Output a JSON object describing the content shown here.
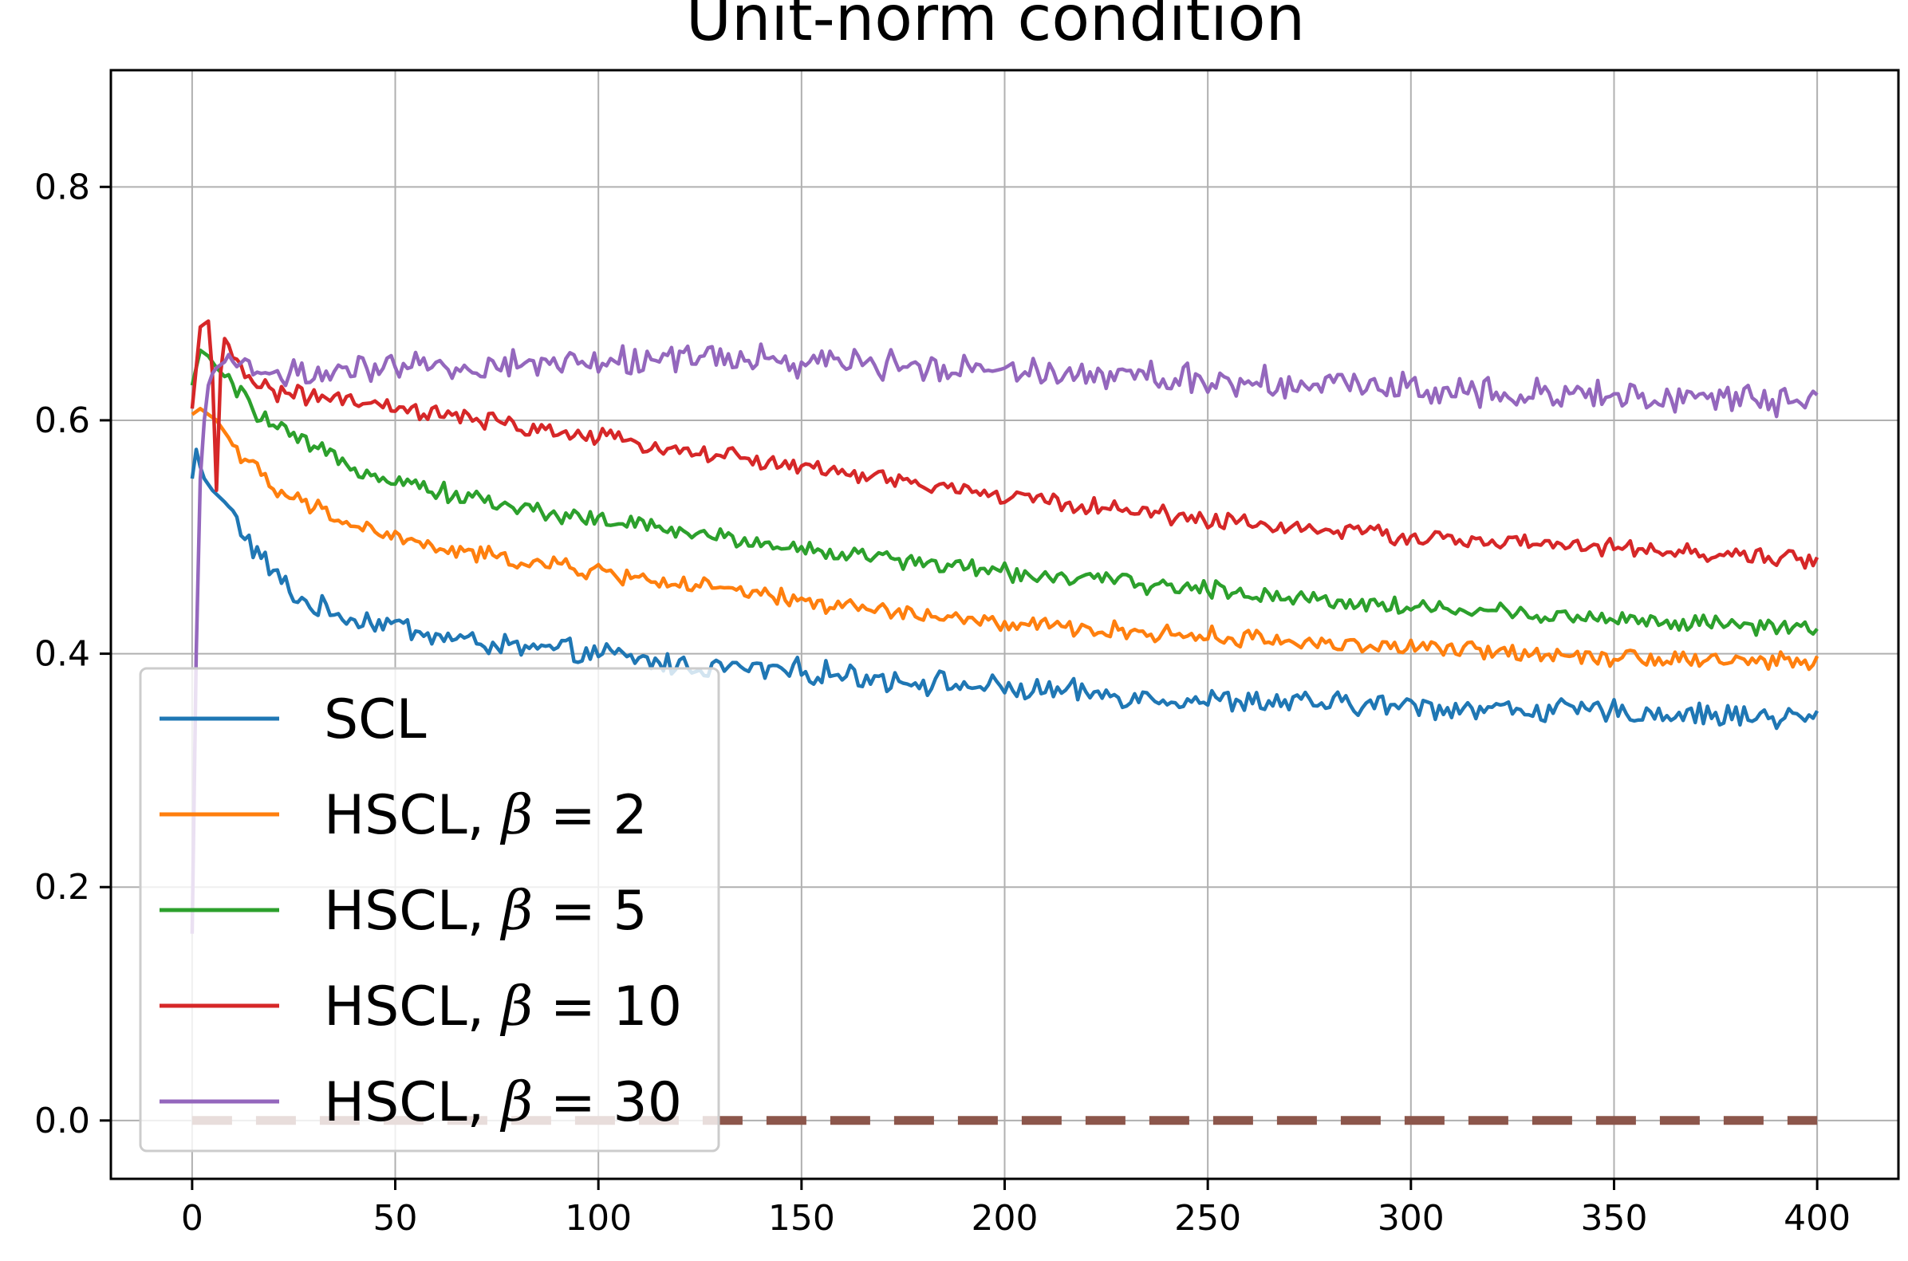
{
  "chart_data": {
    "type": "line",
    "title": "Unit-norm condition",
    "xlabel": "",
    "ylabel": "",
    "xlim": [
      -20,
      420
    ],
    "ylim": [
      -0.05,
      0.9
    ],
    "xticks": [
      0,
      50,
      100,
      150,
      200,
      250,
      300,
      350,
      400
    ],
    "yticks": [
      0.0,
      0.2,
      0.4,
      0.6,
      0.8
    ],
    "xtick_labels": [
      "0",
      "50",
      "100",
      "150",
      "200",
      "250",
      "300",
      "350",
      "400"
    ],
    "ytick_labels": [
      "0.0",
      "0.2",
      "0.4",
      "0.6",
      "0.8"
    ],
    "grid": true,
    "legend_position": "lower-left",
    "series": [
      {
        "name": "SCL",
        "color": "#1f77b4",
        "x": [
          0,
          1,
          2,
          3,
          5,
          8,
          10,
          15,
          20,
          25,
          30,
          40,
          50,
          60,
          70,
          80,
          100,
          120,
          150,
          200,
          250,
          300,
          350,
          400
        ],
        "y": [
          0.55,
          0.575,
          0.56,
          0.55,
          0.54,
          0.53,
          0.52,
          0.49,
          0.47,
          0.45,
          0.44,
          0.43,
          0.425,
          0.415,
          0.41,
          0.405,
          0.4,
          0.39,
          0.385,
          0.37,
          0.36,
          0.355,
          0.35,
          0.345
        ],
        "noise": 0.008
      },
      {
        "name": "HSCL, β = 2",
        "color": "#ff7f0e",
        "x": [
          0,
          2,
          4,
          6,
          10,
          15,
          20,
          30,
          40,
          50,
          60,
          80,
          100,
          120,
          150,
          200,
          250,
          300,
          350,
          400
        ],
        "y": [
          0.605,
          0.61,
          0.605,
          0.6,
          0.58,
          0.56,
          0.54,
          0.525,
          0.51,
          0.5,
          0.49,
          0.48,
          0.47,
          0.46,
          0.445,
          0.425,
          0.415,
          0.405,
          0.398,
          0.392
        ],
        "noise": 0.006
      },
      {
        "name": "HSCL, β = 5",
        "color": "#2ca02c",
        "x": [
          0,
          2,
          4,
          6,
          10,
          15,
          20,
          30,
          40,
          50,
          60,
          80,
          100,
          120,
          150,
          200,
          250,
          300,
          350,
          400
        ],
        "y": [
          0.63,
          0.66,
          0.655,
          0.645,
          0.63,
          0.61,
          0.595,
          0.575,
          0.56,
          0.55,
          0.54,
          0.525,
          0.515,
          0.505,
          0.49,
          0.47,
          0.455,
          0.44,
          0.43,
          0.42
        ],
        "noise": 0.006
      },
      {
        "name": "HSCL, β = 10",
        "color": "#d62728",
        "x": [
          0,
          2,
          4,
          5,
          6,
          7,
          8,
          10,
          15,
          20,
          30,
          40,
          50,
          60,
          80,
          100,
          120,
          150,
          200,
          250,
          300,
          350,
          400
        ],
        "y": [
          0.61,
          0.68,
          0.685,
          0.64,
          0.54,
          0.64,
          0.67,
          0.65,
          0.635,
          0.625,
          0.62,
          0.615,
          0.61,
          0.605,
          0.595,
          0.585,
          0.575,
          0.56,
          0.535,
          0.515,
          0.5,
          0.49,
          0.48
        ],
        "noise": 0.006
      },
      {
        "name": "HSCL, β = 30",
        "color": "#9467bd",
        "x": [
          0,
          1,
          2,
          3,
          4,
          5,
          6,
          8,
          10,
          15,
          20,
          30,
          40,
          50,
          60,
          80,
          100,
          120,
          150,
          200,
          250,
          300,
          350,
          400
        ],
        "y": [
          0.16,
          0.4,
          0.55,
          0.6,
          0.63,
          0.64,
          0.645,
          0.65,
          0.65,
          0.645,
          0.64,
          0.64,
          0.64,
          0.645,
          0.645,
          0.648,
          0.65,
          0.655,
          0.65,
          0.645,
          0.635,
          0.628,
          0.622,
          0.615
        ],
        "noise": 0.01
      },
      {
        "name": "",
        "color": "#8c564b",
        "dashed": true,
        "x": [
          0,
          400
        ],
        "y": [
          0.0,
          0.0
        ],
        "noise": 0
      }
    ]
  }
}
